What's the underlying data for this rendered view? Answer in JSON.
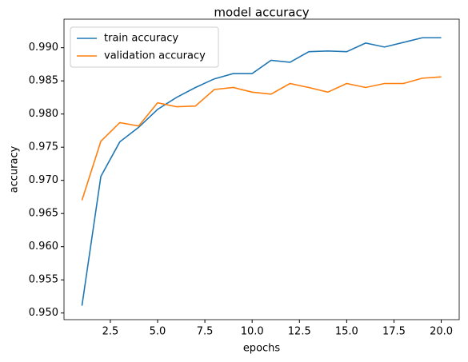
{
  "chart_data": {
    "type": "line",
    "title": "model accuracy",
    "x_label": "epochs",
    "y_label": "accuracy",
    "x": [
      1,
      2,
      3,
      4,
      5,
      6,
      7,
      8,
      9,
      10,
      11,
      12,
      13,
      14,
      15,
      16,
      17,
      18,
      19,
      20
    ],
    "series": [
      {
        "name": "train accuracy",
        "color": "#1f77b4",
        "values": [
          0.9511,
          0.9706,
          0.9758,
          0.978,
          0.9807,
          0.9825,
          0.984,
          0.9853,
          0.9861,
          0.9861,
          0.9881,
          0.9878,
          0.9894,
          0.9895,
          0.9894,
          0.9907,
          0.9901,
          0.9908,
          0.9915,
          0.9915
        ]
      },
      {
        "name": "validation accuracy",
        "color": "#ff7f0e",
        "values": [
          0.967,
          0.9759,
          0.9787,
          0.9782,
          0.9817,
          0.9811,
          0.9812,
          0.9837,
          0.984,
          0.9833,
          0.983,
          0.9846,
          0.984,
          0.9833,
          0.9846,
          0.984,
          0.9846,
          0.9846,
          0.9854,
          0.9856
        ]
      }
    ],
    "xlim": [
      0.05,
      20.95
    ],
    "xticks": [
      2.5,
      {
        "value": 5,
        "label": "5.0"
      },
      7.5,
      {
        "value": 10,
        "label": "10.0"
      },
      12.5,
      {
        "value": 15,
        "label": "15.0"
      },
      17.5,
      {
        "value": 20,
        "label": "20.0"
      }
    ],
    "ylim": [
      0.949,
      0.9943
    ],
    "yticks": [
      {
        "value": 0.95,
        "label": "0.950"
      },
      {
        "value": 0.955,
        "label": "0.955"
      },
      {
        "value": 0.96,
        "label": "0.960"
      },
      {
        "value": 0.965,
        "label": "0.965"
      },
      {
        "value": 0.97,
        "label": "0.970"
      },
      {
        "value": 0.975,
        "label": "0.975"
      },
      {
        "value": 0.98,
        "label": "0.980"
      },
      {
        "value": 0.985,
        "label": "0.985"
      },
      {
        "value": 0.99,
        "label": "0.990"
      }
    ],
    "legend": "upper left",
    "grid": false
  }
}
